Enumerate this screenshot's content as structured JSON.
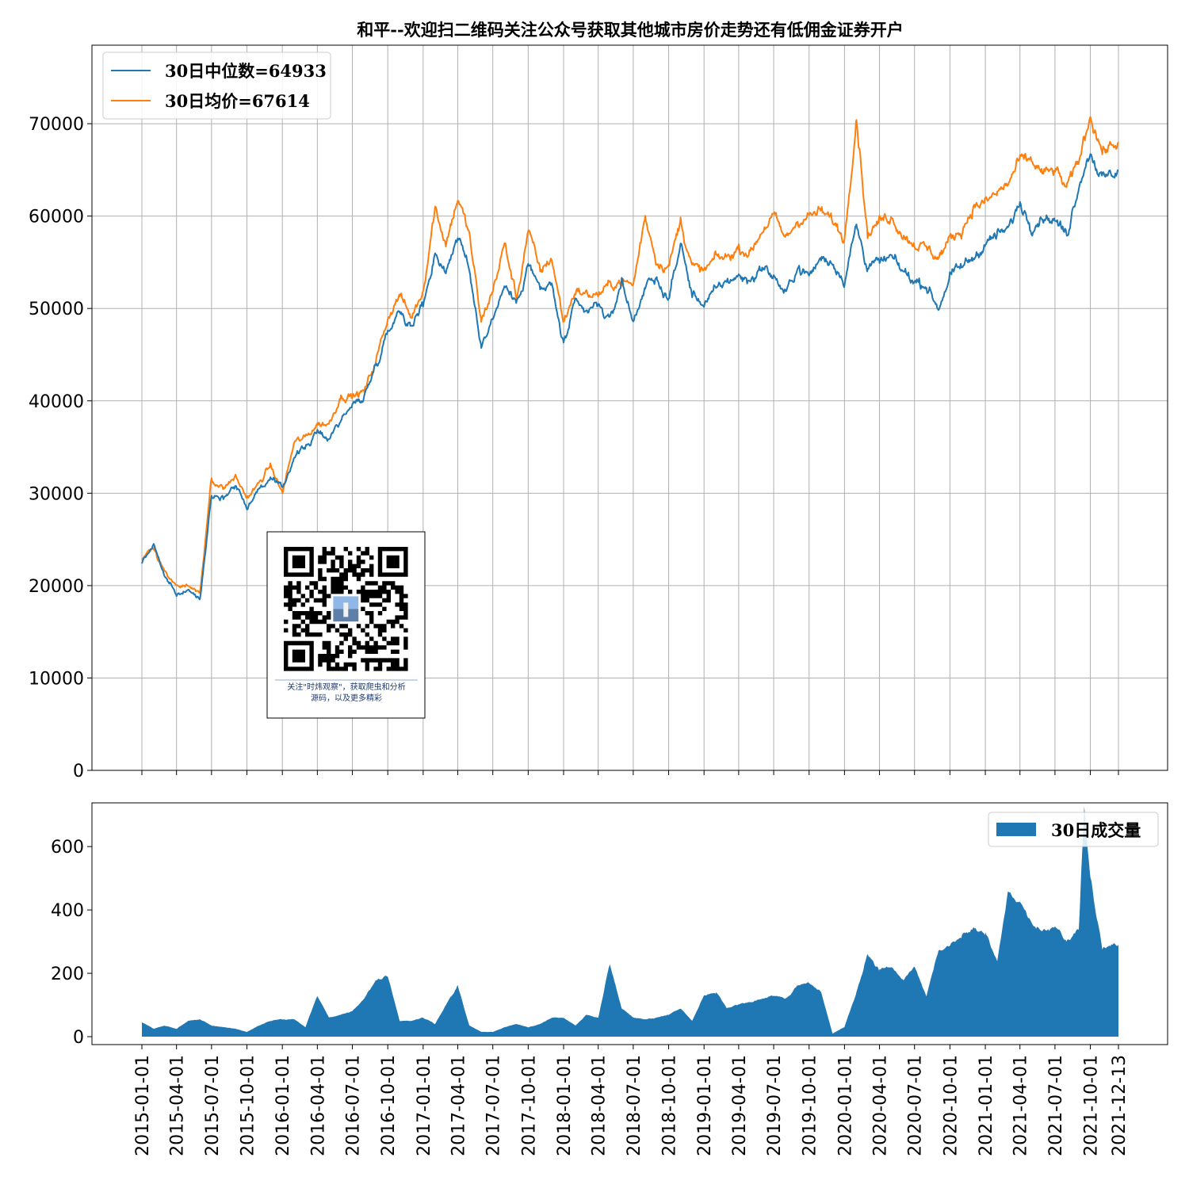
{
  "title": "和平--欢迎扫二维码关注公众号获取其他城市房价走势还有低佣金证券开户",
  "qr_caption": [
    "关注\"时炜观察\"，获取爬虫和分析",
    "源码，以及更多精彩"
  ],
  "colors": {
    "median": "#1f77b4",
    "mean": "#ff7f0e",
    "volume": "#1f77b4",
    "grid": "#b0b0b0"
  },
  "chart_data": [
    {
      "type": "line",
      "ylim": [
        0,
        78500
      ],
      "yticks": [
        "0",
        "10000",
        "20000",
        "30000",
        "40000",
        "50000",
        "60000",
        "70000"
      ],
      "ytick_values": [
        0,
        10000,
        20000,
        30000,
        40000,
        50000,
        60000,
        70000
      ],
      "grid": true,
      "legend": "top-left",
      "x": [
        "2015-01-01",
        "2015-02-01",
        "2015-03-01",
        "2015-04-01",
        "2015-05-01",
        "2015-06-01",
        "2015-07-01",
        "2015-08-01",
        "2015-09-01",
        "2015-10-01",
        "2015-11-01",
        "2015-12-01",
        "2016-01-01",
        "2016-02-01",
        "2016-03-01",
        "2016-04-01",
        "2016-05-01",
        "2016-06-01",
        "2016-07-01",
        "2016-08-01",
        "2016-09-01",
        "2016-10-01",
        "2016-11-01",
        "2016-12-01",
        "2017-01-01",
        "2017-02-01",
        "2017-03-01",
        "2017-04-01",
        "2017-05-01",
        "2017-06-01",
        "2017-07-01",
        "2017-08-01",
        "2017-09-01",
        "2017-10-01",
        "2017-11-01",
        "2017-12-01",
        "2018-01-01",
        "2018-02-01",
        "2018-03-01",
        "2018-04-01",
        "2018-05-01",
        "2018-06-01",
        "2018-07-01",
        "2018-08-01",
        "2018-09-01",
        "2018-10-01",
        "2018-11-01",
        "2018-12-01",
        "2019-01-01",
        "2019-02-01",
        "2019-03-01",
        "2019-04-01",
        "2019-05-01",
        "2019-06-01",
        "2019-07-01",
        "2019-08-01",
        "2019-09-01",
        "2019-10-01",
        "2019-11-01",
        "2019-12-01",
        "2020-01-01",
        "2020-02-01",
        "2020-03-01",
        "2020-04-01",
        "2020-05-01",
        "2020-06-01",
        "2020-07-01",
        "2020-08-01",
        "2020-09-01",
        "2020-10-01",
        "2020-11-01",
        "2020-12-01",
        "2021-01-01",
        "2021-02-01",
        "2021-03-01",
        "2021-04-01",
        "2021-05-01",
        "2021-06-01",
        "2021-07-01",
        "2021-08-01",
        "2021-09-01",
        "2021-10-01",
        "2021-11-01",
        "2021-12-13"
      ],
      "series": [
        {
          "name": "30日中位数=64933",
          "color": "#1f77b4",
          "values": [
            22500,
            24500,
            21000,
            19000,
            19500,
            18500,
            30000,
            29500,
            31000,
            28500,
            30500,
            31500,
            30500,
            34000,
            35000,
            36500,
            36000,
            38000,
            39500,
            40500,
            44000,
            47500,
            50000,
            48000,
            50500,
            56000,
            54000,
            58000,
            54000,
            46000,
            49000,
            52500,
            50500,
            55000,
            52000,
            52500,
            46000,
            50500,
            49500,
            50500,
            48500,
            53000,
            48500,
            52500,
            53000,
            51000,
            57000,
            51500,
            50500,
            52000,
            53000,
            53500,
            53000,
            54500,
            53500,
            51500,
            54500,
            53500,
            55500,
            55000,
            53000,
            59000,
            54500,
            55000,
            55500,
            54000,
            53000,
            52500,
            50000,
            53500,
            54500,
            55500,
            57000,
            58000,
            58500,
            61500,
            59000,
            60000,
            59500,
            58000,
            63500,
            67000,
            64000,
            65000
          ]
        },
        {
          "name": "30日均价=67614",
          "color": "#ff7f0e",
          "values": [
            22800,
            24000,
            21500,
            19800,
            20000,
            19200,
            31500,
            30500,
            31800,
            29500,
            31000,
            33000,
            30000,
            35500,
            36000,
            37500,
            37500,
            40500,
            40500,
            41000,
            44500,
            49000,
            51500,
            49000,
            52000,
            61000,
            57000,
            62000,
            58000,
            48500,
            52000,
            57000,
            51000,
            58500,
            54000,
            55500,
            48500,
            52000,
            51500,
            51500,
            52500,
            53000,
            52500,
            60000,
            55000,
            54500,
            59500,
            54500,
            54000,
            55500,
            55500,
            56500,
            56000,
            58500,
            60000,
            57500,
            59500,
            60000,
            60500,
            59500,
            57500,
            71000,
            58000,
            59500,
            60000,
            58000,
            57000,
            56500,
            55500,
            57500,
            58500,
            61000,
            61500,
            62500,
            63500,
            66000,
            66000,
            64500,
            65000,
            63000,
            66000,
            71000,
            67000,
            68000
          ]
        }
      ]
    },
    {
      "type": "area",
      "ylim": [
        -25,
        738
      ],
      "yticks": [
        "0",
        "200",
        "400",
        "600"
      ],
      "ytick_values": [
        0,
        200,
        400,
        600
      ],
      "legend": "top-right",
      "series": [
        {
          "name": "30日成交量",
          "color": "#1f77b4",
          "x": [
            "2015-01-01",
            "2015-02-01",
            "2015-03-01",
            "2015-04-01",
            "2015-05-01",
            "2015-06-01",
            "2015-07-01",
            "2015-08-01",
            "2015-09-01",
            "2015-10-01",
            "2015-11-01",
            "2015-12-01",
            "2016-01-01",
            "2016-02-01",
            "2016-03-01",
            "2016-04-01",
            "2016-05-01",
            "2016-06-01",
            "2016-07-01",
            "2016-08-01",
            "2016-09-01",
            "2016-10-01",
            "2016-11-01",
            "2016-12-01",
            "2017-01-01",
            "2017-02-01",
            "2017-03-01",
            "2017-04-01",
            "2017-05-01",
            "2017-06-01",
            "2017-07-01",
            "2017-08-01",
            "2017-09-01",
            "2017-10-01",
            "2017-11-01",
            "2017-12-01",
            "2018-01-01",
            "2018-02-01",
            "2018-03-01",
            "2018-04-01",
            "2018-05-01",
            "2018-06-01",
            "2018-07-01",
            "2018-08-01",
            "2018-09-01",
            "2018-10-01",
            "2018-11-01",
            "2018-12-01",
            "2019-01-01",
            "2019-02-01",
            "2019-03-01",
            "2019-04-01",
            "2019-05-01",
            "2019-06-01",
            "2019-07-01",
            "2019-08-01",
            "2019-09-01",
            "2019-10-01",
            "2019-11-01",
            "2019-12-01",
            "2020-01-01",
            "2020-02-01",
            "2020-03-01",
            "2020-04-01",
            "2020-05-01",
            "2020-06-01",
            "2020-07-01",
            "2020-08-01",
            "2020-09-01",
            "2020-10-01",
            "2020-11-01",
            "2020-12-01",
            "2021-01-01",
            "2021-02-01",
            "2021-03-01",
            "2021-04-01",
            "2021-05-01",
            "2021-06-01",
            "2021-07-01",
            "2021-08-01",
            "2021-09-01",
            "2021-09-15",
            "2021-10-01",
            "2021-10-20",
            "2021-11-01",
            "2021-12-13"
          ],
          "values": [
            45,
            25,
            35,
            25,
            50,
            55,
            35,
            30,
            25,
            15,
            35,
            50,
            55,
            55,
            30,
            130,
            60,
            70,
            80,
            120,
            180,
            190,
            50,
            50,
            60,
            40,
            100,
            160,
            35,
            15,
            15,
            30,
            40,
            30,
            40,
            60,
            60,
            35,
            70,
            60,
            230,
            90,
            60,
            55,
            60,
            70,
            90,
            50,
            130,
            140,
            90,
            100,
            110,
            120,
            130,
            120,
            160,
            170,
            140,
            10,
            30,
            140,
            260,
            210,
            220,
            180,
            220,
            130,
            270,
            290,
            320,
            340,
            330,
            240,
            460,
            420,
            360,
            330,
            350,
            300,
            340,
            720,
            500,
            360,
            280,
            290
          ]
        }
      ]
    }
  ],
  "x_ticks": [
    "2015-01-01",
    "2015-04-01",
    "2015-07-01",
    "2015-10-01",
    "2016-01-01",
    "2016-04-01",
    "2016-07-01",
    "2016-10-01",
    "2017-01-01",
    "2017-04-01",
    "2017-07-01",
    "2017-10-01",
    "2018-01-01",
    "2018-04-01",
    "2018-07-01",
    "2018-10-01",
    "2019-01-01",
    "2019-04-01",
    "2019-07-01",
    "2019-10-01",
    "2020-01-01",
    "2020-04-01",
    "2020-07-01",
    "2020-10-01",
    "2021-01-01",
    "2021-04-01",
    "2021-07-01",
    "2021-10-01",
    "2021-12-13"
  ]
}
